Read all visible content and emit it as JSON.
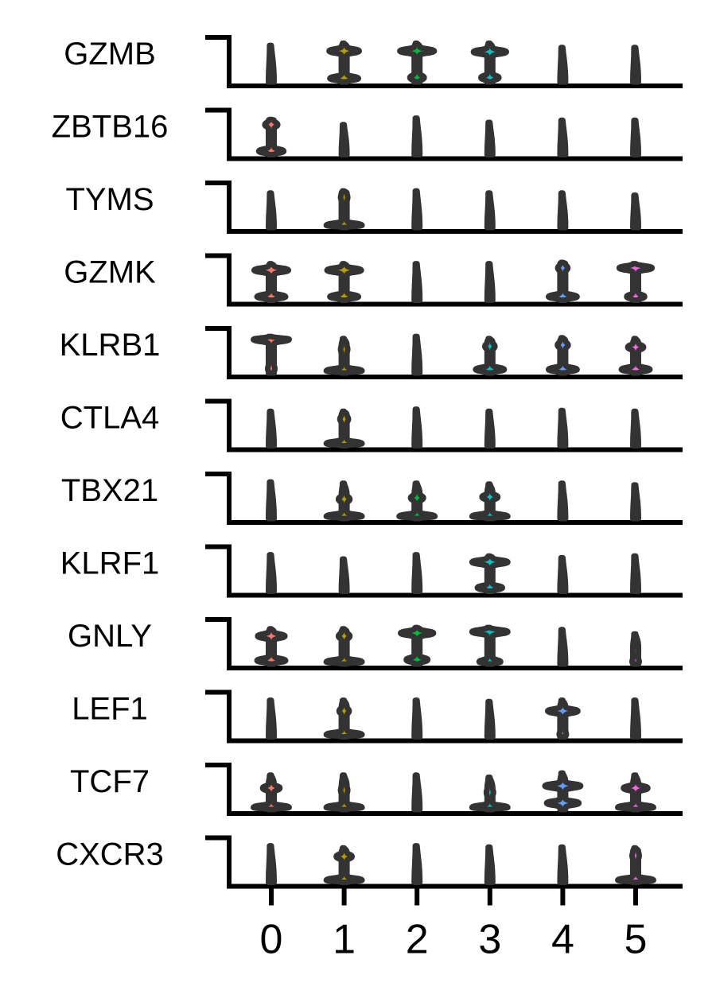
{
  "chart_data": {
    "type": "violin",
    "title": "",
    "xlabel": "",
    "ylabel": "",
    "categories": [
      "0",
      "1",
      "2",
      "3",
      "4",
      "5"
    ],
    "colors": [
      "#F8766D",
      "#B79F00",
      "#00BA38",
      "#00BFC4",
      "#619CFF",
      "#F564E3"
    ],
    "outline_color": "#333333",
    "genes": [
      {
        "name": "GZMB",
        "violins": [
          {
            "top": 0.85,
            "bulges": []
          },
          {
            "top": 0.9,
            "bulges": [
              {
                "y": 0.72,
                "w": 0.42
              },
              {
                "y": 0.08,
                "w": 0.4
              }
            ]
          },
          {
            "top": 0.9,
            "bulges": [
              {
                "y": 0.72,
                "w": 0.48
              },
              {
                "y": 0.1,
                "w": 0.2
              }
            ]
          },
          {
            "top": 0.9,
            "bulges": [
              {
                "y": 0.7,
                "w": 0.46
              },
              {
                "y": 0.1,
                "w": 0.25
              }
            ]
          },
          {
            "top": 0.8,
            "bulges": []
          },
          {
            "top": 0.8,
            "bulges": []
          }
        ]
      },
      {
        "name": "ZBTB16",
        "violins": [
          {
            "top": 0.82,
            "bulges": [
              {
                "y": 0.7,
                "w": 0.18
              },
              {
                "y": 0.08,
                "w": 0.35
              }
            ]
          },
          {
            "top": 0.7,
            "bulges": []
          },
          {
            "top": 0.85,
            "bulges": []
          },
          {
            "top": 0.75,
            "bulges": []
          },
          {
            "top": 0.8,
            "bulges": []
          },
          {
            "top": 0.8,
            "bulges": []
          }
        ]
      },
      {
        "name": "TYMS",
        "violins": [
          {
            "top": 0.8,
            "bulges": []
          },
          {
            "top": 0.85,
            "bulges": [
              {
                "y": 0.7,
                "w": 0.1
              },
              {
                "y": 0.05,
                "w": 0.5
              }
            ]
          },
          {
            "top": 0.85,
            "bulges": []
          },
          {
            "top": 0.8,
            "bulges": []
          },
          {
            "top": 0.8,
            "bulges": []
          },
          {
            "top": 0.75,
            "bulges": []
          }
        ]
      },
      {
        "name": "GZMK",
        "violins": [
          {
            "top": 0.85,
            "bulges": [
              {
                "y": 0.7,
                "w": 0.48
              },
              {
                "y": 0.08,
                "w": 0.4
              }
            ]
          },
          {
            "top": 0.85,
            "bulges": [
              {
                "y": 0.7,
                "w": 0.48
              },
              {
                "y": 0.08,
                "w": 0.4
              }
            ]
          },
          {
            "top": 0.85,
            "bulges": []
          },
          {
            "top": 0.85,
            "bulges": []
          },
          {
            "top": 0.88,
            "bulges": [
              {
                "y": 0.75,
                "w": 0.14
              },
              {
                "y": 0.08,
                "w": 0.4
              }
            ]
          },
          {
            "top": 0.85,
            "bulges": [
              {
                "y": 0.75,
                "w": 0.46
              },
              {
                "y": 0.08,
                "w": 0.25
              }
            ]
          }
        ]
      },
      {
        "name": "KLRB1",
        "violins": [
          {
            "top": 0.85,
            "bulges": [
              {
                "y": 0.78,
                "w": 0.5
              },
              {
                "y": 0.1,
                "w": 0.1
              }
            ]
          },
          {
            "top": 0.8,
            "bulges": [
              {
                "y": 0.55,
                "w": 0.1
              },
              {
                "y": 0.05,
                "w": 0.5
              }
            ]
          },
          {
            "top": 0.85,
            "bulges": []
          },
          {
            "top": 0.8,
            "bulges": [
              {
                "y": 0.62,
                "w": 0.14
              },
              {
                "y": 0.08,
                "w": 0.4
              }
            ]
          },
          {
            "top": 0.82,
            "bulges": [
              {
                "y": 0.65,
                "w": 0.15
              },
              {
                "y": 0.08,
                "w": 0.4
              }
            ]
          },
          {
            "top": 0.8,
            "bulges": [
              {
                "y": 0.6,
                "w": 0.22
              },
              {
                "y": 0.08,
                "w": 0.4
              }
            ]
          }
        ]
      },
      {
        "name": "CTLA4",
        "violins": [
          {
            "top": 0.8,
            "bulges": []
          },
          {
            "top": 0.8,
            "bulges": [
              {
                "y": 0.62,
                "w": 0.12
              },
              {
                "y": 0.05,
                "w": 0.5
              }
            ]
          },
          {
            "top": 0.85,
            "bulges": []
          },
          {
            "top": 0.8,
            "bulges": []
          },
          {
            "top": 0.82,
            "bulges": []
          },
          {
            "top": 0.8,
            "bulges": []
          }
        ]
      },
      {
        "name": "TBX21",
        "violins": [
          {
            "top": 0.85,
            "bulges": []
          },
          {
            "top": 0.82,
            "bulges": [
              {
                "y": 0.45,
                "w": 0.16
              },
              {
                "y": 0.05,
                "w": 0.5
              }
            ]
          },
          {
            "top": 0.82,
            "bulges": [
              {
                "y": 0.48,
                "w": 0.18
              },
              {
                "y": 0.05,
                "w": 0.5
              }
            ]
          },
          {
            "top": 0.8,
            "bulges": [
              {
                "y": 0.5,
                "w": 0.22
              },
              {
                "y": 0.05,
                "w": 0.5
              }
            ]
          },
          {
            "top": 0.82,
            "bulges": []
          },
          {
            "top": 0.78,
            "bulges": []
          }
        ]
      },
      {
        "name": "KLRF1",
        "violins": [
          {
            "top": 0.85,
            "bulges": []
          },
          {
            "top": 0.75,
            "bulges": []
          },
          {
            "top": 0.85,
            "bulges": []
          },
          {
            "top": 0.82,
            "bulges": [
              {
                "y": 0.68,
                "w": 0.5
              },
              {
                "y": 0.08,
                "w": 0.35
              }
            ]
          },
          {
            "top": 0.78,
            "bulges": []
          },
          {
            "top": 0.82,
            "bulges": []
          }
        ]
      },
      {
        "name": "GNLY",
        "violins": [
          {
            "top": 0.82,
            "bulges": [
              {
                "y": 0.65,
                "w": 0.38
              },
              {
                "y": 0.08,
                "w": 0.4
              }
            ]
          },
          {
            "top": 0.82,
            "bulges": [
              {
                "y": 0.65,
                "w": 0.16
              },
              {
                "y": 0.4,
                "w": 0.06
              },
              {
                "y": 0.05,
                "w": 0.5
              }
            ]
          },
          {
            "top": 0.85,
            "bulges": [
              {
                "y": 0.72,
                "w": 0.46
              },
              {
                "y": 0.1,
                "w": 0.3
              }
            ]
          },
          {
            "top": 0.85,
            "bulges": [
              {
                "y": 0.75,
                "w": 0.5
              },
              {
                "y": 0.3,
                "w": 0.05
              },
              {
                "y": 0.05,
                "w": 0.3
              }
            ]
          },
          {
            "top": 0.8,
            "bulges": []
          },
          {
            "top": 0.7,
            "bulges": [
              {
                "y": 0.3,
                "w": 0.08
              },
              {
                "y": 0.05,
                "w": 0.1
              }
            ]
          }
        ]
      },
      {
        "name": "LEF1",
        "violins": [
          {
            "top": 0.85,
            "bulges": []
          },
          {
            "top": 0.85,
            "bulges": [
              {
                "y": 0.6,
                "w": 0.14
              },
              {
                "y": 0.05,
                "w": 0.5
              }
            ]
          },
          {
            "top": 0.85,
            "bulges": []
          },
          {
            "top": 0.82,
            "bulges": []
          },
          {
            "top": 0.85,
            "bulges": [
              {
                "y": 0.6,
                "w": 0.42
              },
              {
                "y": 0.05,
                "w": 0.1
              }
            ]
          },
          {
            "top": 0.85,
            "bulges": []
          }
        ]
      },
      {
        "name": "TCF7",
        "violins": [
          {
            "top": 0.8,
            "bulges": [
              {
                "y": 0.5,
                "w": 0.24
              },
              {
                "y": 0.05,
                "w": 0.5
              }
            ]
          },
          {
            "top": 0.8,
            "bulges": [
              {
                "y": 0.45,
                "w": 0.1
              },
              {
                "y": 0.05,
                "w": 0.5
              }
            ]
          },
          {
            "top": 0.8,
            "bulges": []
          },
          {
            "top": 0.75,
            "bulges": [
              {
                "y": 0.4,
                "w": 0.1
              },
              {
                "y": 0.05,
                "w": 0.5
              }
            ]
          },
          {
            "top": 0.85,
            "bulges": [
              {
                "y": 0.55,
                "w": 0.5
              },
              {
                "y": 0.15,
                "w": 0.45
              }
            ]
          },
          {
            "top": 0.8,
            "bulges": [
              {
                "y": 0.5,
                "w": 0.34
              },
              {
                "y": 0.05,
                "w": 0.5
              }
            ]
          }
        ]
      },
      {
        "name": "CXCR3",
        "violins": [
          {
            "top": 0.85,
            "bulges": []
          },
          {
            "top": 0.8,
            "bulges": [
              {
                "y": 0.6,
                "w": 0.22
              },
              {
                "y": 0.05,
                "w": 0.5
              }
            ]
          },
          {
            "top": 0.85,
            "bulges": []
          },
          {
            "top": 0.82,
            "bulges": []
          },
          {
            "top": 0.82,
            "bulges": []
          },
          {
            "top": 0.8,
            "bulges": [
              {
                "y": 0.62,
                "w": 0.1
              },
              {
                "y": 0.05,
                "w": 0.5
              }
            ]
          }
        ]
      }
    ]
  }
}
